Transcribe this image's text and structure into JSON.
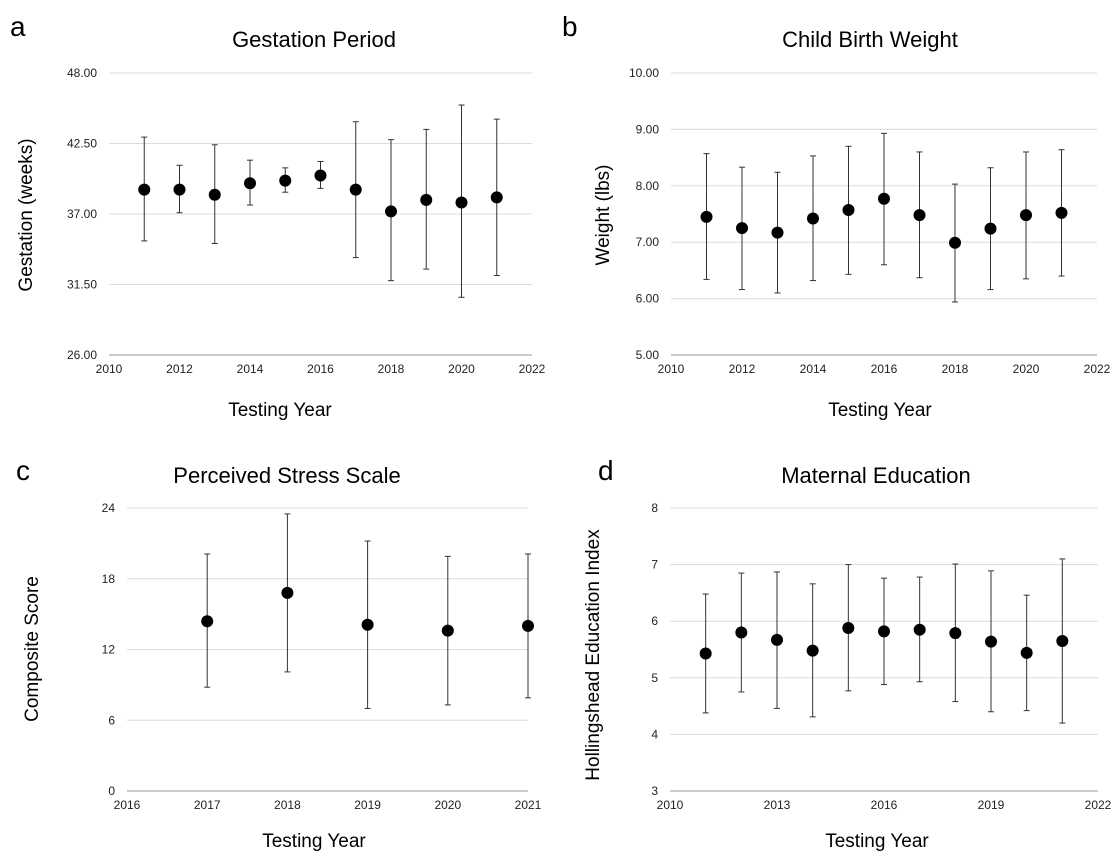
{
  "chart_data": [
    {
      "type": "scatter",
      "panel_label": "a",
      "title": "Gestation Period",
      "xlabel": "Testing Year",
      "ylabel": "Gestation (weeks)",
      "xlim": [
        2010,
        2022
      ],
      "xticks": [
        2010,
        2012,
        2014,
        2016,
        2018,
        2020,
        2022
      ],
      "xtick_labels": [
        "2010",
        "2012",
        "2014",
        "2016",
        "2018",
        "2020",
        "2022"
      ],
      "ylim": [
        26,
        48
      ],
      "yticks": [
        26,
        31.5,
        37,
        42.5,
        48
      ],
      "ytick_labels": [
        "26.00",
        "31.50",
        "37.00",
        "42.50",
        "48.00"
      ],
      "grid": true,
      "x": [
        2011,
        2012,
        2013,
        2014,
        2015,
        2016,
        2017,
        2018,
        2019,
        2020,
        2021
      ],
      "y": [
        38.9,
        38.9,
        38.5,
        39.4,
        39.6,
        40.0,
        38.9,
        37.2,
        38.1,
        37.9,
        38.3
      ],
      "err_low": [
        34.9,
        37.1,
        34.7,
        37.7,
        38.7,
        39.0,
        33.6,
        31.8,
        32.7,
        30.5,
        32.2
      ],
      "err_high": [
        43.0,
        40.8,
        42.4,
        41.2,
        40.6,
        41.1,
        44.2,
        42.8,
        43.6,
        45.5,
        44.4
      ]
    },
    {
      "type": "scatter",
      "panel_label": "b",
      "title": "Child Birth Weight",
      "xlabel": "Testing Year",
      "ylabel": "Weight (lbs)",
      "xlim": [
        2010,
        2022
      ],
      "xticks": [
        2010,
        2012,
        2014,
        2016,
        2018,
        2020,
        2022
      ],
      "xtick_labels": [
        "2010",
        "2012",
        "2014",
        "2016",
        "2018",
        "2020",
        "2022"
      ],
      "ylim": [
        5,
        10
      ],
      "yticks": [
        5,
        6,
        7,
        8,
        9,
        10
      ],
      "ytick_labels": [
        "5.00",
        "6.00",
        "7.00",
        "8.00",
        "9.00",
        "10.00"
      ],
      "grid": true,
      "x": [
        2011,
        2012,
        2013,
        2014,
        2015,
        2016,
        2017,
        2018,
        2019,
        2020,
        2021
      ],
      "y": [
        7.45,
        7.25,
        7.17,
        7.42,
        7.57,
        7.77,
        7.48,
        6.99,
        7.24,
        7.48,
        7.52
      ],
      "err_low": [
        6.34,
        6.16,
        6.1,
        6.32,
        6.43,
        6.6,
        6.37,
        5.94,
        6.16,
        6.35,
        6.4
      ],
      "err_high": [
        8.57,
        8.33,
        8.24,
        8.53,
        8.7,
        8.93,
        8.6,
        8.03,
        8.32,
        8.6,
        8.64
      ]
    },
    {
      "type": "scatter",
      "panel_label": "c",
      "title": "Perceived Stress Scale",
      "xlabel": "Testing Year",
      "ylabel": "Composite Score",
      "xlim": [
        2016,
        2021
      ],
      "xticks": [
        2016,
        2017,
        2018,
        2019,
        2020,
        2021
      ],
      "xtick_labels": [
        "2016",
        "2017",
        "2018",
        "2019",
        "2020",
        "2021"
      ],
      "ylim": [
        0,
        24
      ],
      "yticks": [
        0,
        6,
        12,
        18,
        24
      ],
      "ytick_labels": [
        "0",
        "6",
        "12",
        "18",
        "24"
      ],
      "grid": true,
      "x": [
        2017,
        2018,
        2019,
        2020,
        2021
      ],
      "y": [
        14.4,
        16.8,
        14.1,
        13.6,
        14.0
      ],
      "err_low": [
        8.8,
        10.1,
        7.0,
        7.3,
        7.9
      ],
      "err_high": [
        20.1,
        23.5,
        21.2,
        19.9,
        20.1
      ]
    },
    {
      "type": "scatter",
      "panel_label": "d",
      "title": "Maternal Education",
      "xlabel": "Testing Year",
      "ylabel": "Hollingshead Education Index",
      "xlim": [
        2010,
        2022
      ],
      "xticks": [
        2010,
        2013,
        2016,
        2019,
        2022
      ],
      "xtick_labels": [
        "2010",
        "2013",
        "2016",
        "2019",
        "2022"
      ],
      "ylim": [
        3,
        8
      ],
      "yticks": [
        3,
        4,
        5,
        6,
        7,
        8
      ],
      "ytick_labels": [
        "3",
        "4",
        "5",
        "6",
        "7",
        "8"
      ],
      "grid": true,
      "x": [
        2011,
        2012,
        2013,
        2014,
        2015,
        2016,
        2017,
        2018,
        2019,
        2020,
        2021
      ],
      "y": [
        5.43,
        5.8,
        5.67,
        5.48,
        5.88,
        5.82,
        5.85,
        5.79,
        5.64,
        5.44,
        5.65
      ],
      "err_low": [
        4.38,
        4.75,
        4.46,
        4.31,
        4.77,
        4.88,
        4.93,
        4.58,
        4.4,
        4.42,
        4.2
      ],
      "err_high": [
        6.48,
        6.85,
        6.87,
        6.66,
        7.0,
        6.76,
        6.78,
        7.01,
        6.89,
        6.46,
        7.1
      ]
    }
  ]
}
